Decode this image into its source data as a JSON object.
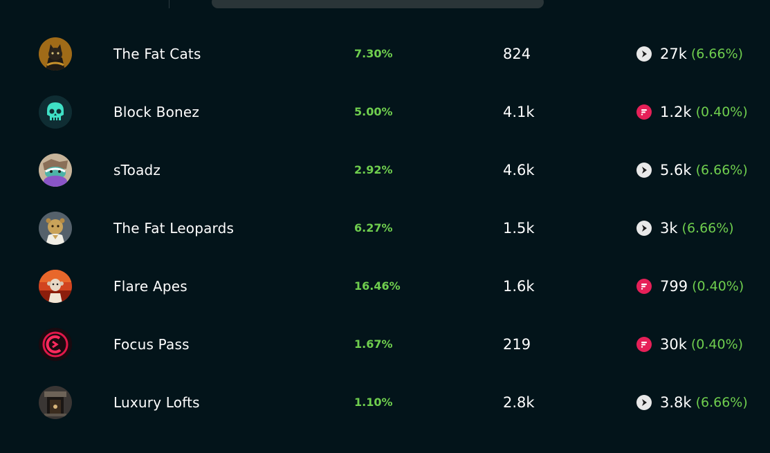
{
  "colors": {
    "background": "#03141a",
    "positive": "#6fce4e",
    "flare": "#e62058"
  },
  "rows": [
    {
      "name": "The Fat Cats",
      "pct": "7.30%",
      "count": "824",
      "chain_icon": "songbird-icon",
      "reward": "27k",
      "reward_pct": "(6.66%)"
    },
    {
      "name": "Block Bonez",
      "pct": "5.00%",
      "count": "4.1k",
      "chain_icon": "flare-icon",
      "reward": "1.2k",
      "reward_pct": "(0.40%)"
    },
    {
      "name": "sToadz",
      "pct": "2.92%",
      "count": "4.6k",
      "chain_icon": "songbird-icon",
      "reward": "5.6k",
      "reward_pct": "(6.66%)"
    },
    {
      "name": "The Fat Leopards",
      "pct": "6.27%",
      "count": "1.5k",
      "chain_icon": "songbird-icon",
      "reward": "3k",
      "reward_pct": "(6.66%)"
    },
    {
      "name": "Flare Apes",
      "pct": "16.46%",
      "count": "1.6k",
      "chain_icon": "flare-icon",
      "reward": "799",
      "reward_pct": "(0.40%)"
    },
    {
      "name": "Focus Pass",
      "pct": "1.67%",
      "count": "219",
      "chain_icon": "flare-icon",
      "reward": "30k",
      "reward_pct": "(0.40%)"
    },
    {
      "name": "Luxury Lofts",
      "pct": "1.10%",
      "count": "2.8k",
      "chain_icon": "songbird-icon",
      "reward": "3.8k",
      "reward_pct": "(6.66%)"
    }
  ]
}
